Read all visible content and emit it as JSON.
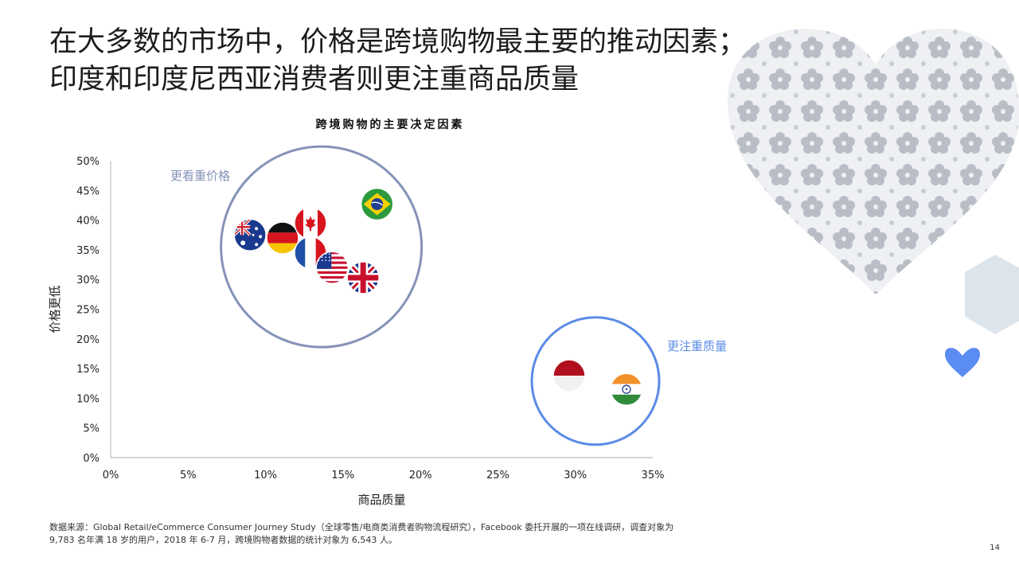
{
  "title_lines": [
    "在大多数的市场中，价格是跨境购物最主要的推动因素；",
    "印度和印度尼西亚消费者则更注重商品质量"
  ],
  "footnote_lines": [
    "数据来源：Global Retail/eCommerce Consumer Journey Study（全球零售/电商类消费者购物流程研究），Facebook 委托开展的一项在线调研，调查对象为",
    "9,783 名年满 18 岁的用户，2018 年 6-7 月，跨境购物者数据的统计对象为 6,543 人。"
  ],
  "page_number": "14",
  "colors": {
    "price_group": "#8592b8",
    "quality_group": "#5b8be6",
    "heart": "#5b8cf2",
    "hexagon": "#dde5ec",
    "axis": "#b0b0b0"
  },
  "chart_data": {
    "type": "scatter",
    "title": "跨境购物的主要决定因素",
    "xlabel": "商品质量",
    "ylabel": "价格更低",
    "xlim": [
      0,
      35
    ],
    "ylim": [
      0,
      50
    ],
    "x_ticks": [
      "0%",
      "5%",
      "10%",
      "15%",
      "20%",
      "25%",
      "30%",
      "35%"
    ],
    "y_ticks": [
      "0%",
      "5%",
      "10%",
      "15%",
      "20%",
      "25%",
      "30%",
      "35%",
      "40%",
      "45%",
      "50%"
    ],
    "points": [
      {
        "flag": "australia-flag",
        "x": 9.0,
        "y": 37.5
      },
      {
        "flag": "germany-flag",
        "x": 11.1,
        "y": 37.0
      },
      {
        "flag": "canada-flag",
        "x": 12.9,
        "y": 39.5
      },
      {
        "flag": "france-flag",
        "x": 12.9,
        "y": 34.5
      },
      {
        "flag": "usa-flag",
        "x": 14.3,
        "y": 32.0
      },
      {
        "flag": "uk-flag",
        "x": 16.3,
        "y": 30.3
      },
      {
        "flag": "brazil-flag",
        "x": 17.2,
        "y": 42.7
      },
      {
        "flag": "indonesia-flag",
        "x": 29.6,
        "y": 13.8
      },
      {
        "flag": "india-flag",
        "x": 33.3,
        "y": 11.5
      }
    ],
    "groups": [
      {
        "label": "更看重价格",
        "cx": 13.6,
        "cy": 35.5,
        "members": [
          "australia-flag",
          "germany-flag",
          "canada-flag",
          "france-flag",
          "usa-flag",
          "uk-flag",
          "brazil-flag"
        ]
      },
      {
        "label": "更注重质量",
        "cx": 31.3,
        "cy": 12.9,
        "members": [
          "indonesia-flag",
          "india-flag"
        ]
      }
    ]
  }
}
